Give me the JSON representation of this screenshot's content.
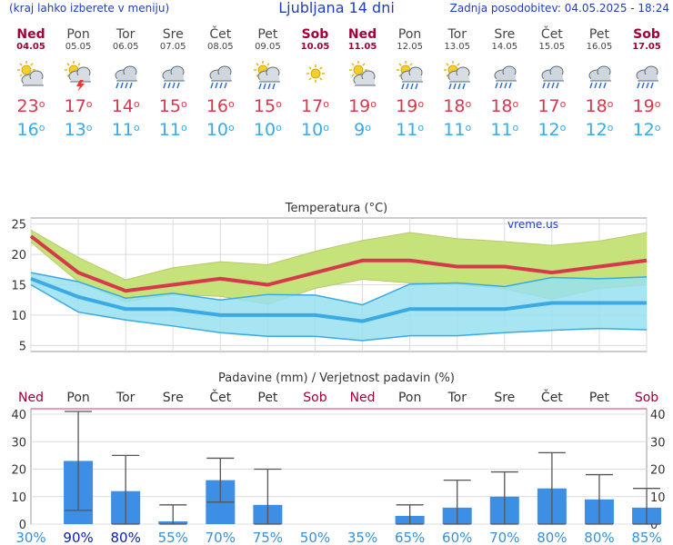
{
  "header": {
    "left_note": "(kraj lahko izberete v meniju)",
    "title": "Ljubljana 14 dni",
    "updated": "Zadnja posodobitev: 04.05.2025 - 18:24"
  },
  "colors": {
    "max_temp": "#d43a4c",
    "min_temp": "#3aa9e4",
    "weekend": "#a0003a",
    "weekday": "#444444",
    "bar": "#3d8fe6",
    "green_band": "#c6e27a",
    "blue_band": "#98e0f0"
  },
  "days": [
    {
      "name": "Ned",
      "date": "04.05",
      "weekend": true,
      "icon": "partly-cloudy-icon",
      "max": "23",
      "min": "16",
      "pct": "30%"
    },
    {
      "name": "Pon",
      "date": "05.05",
      "weekend": false,
      "icon": "sun-cloud-thunder-icon",
      "max": "17",
      "min": "13",
      "pct": "90%"
    },
    {
      "name": "Tor",
      "date": "06.05",
      "weekend": false,
      "icon": "cloud-rain-icon",
      "max": "14",
      "min": "11",
      "pct": "80%"
    },
    {
      "name": "Sre",
      "date": "07.05",
      "weekend": false,
      "icon": "cloud-rain-icon",
      "max": "15",
      "min": "11",
      "pct": "55%"
    },
    {
      "name": "Čet",
      "date": "08.05",
      "weekend": false,
      "icon": "cloud-rain-icon",
      "max": "16",
      "min": "10",
      "pct": "70%"
    },
    {
      "name": "Pet",
      "date": "09.05",
      "weekend": false,
      "icon": "sun-cloud-rain-icon",
      "max": "15",
      "min": "10",
      "pct": "75%"
    },
    {
      "name": "Sob",
      "date": "10.05",
      "weekend": true,
      "icon": "sun-icon",
      "max": "17",
      "min": "10",
      "pct": "50%"
    },
    {
      "name": "Ned",
      "date": "11.05",
      "weekend": true,
      "icon": "partly-cloudy-icon",
      "max": "19",
      "min": "9",
      "pct": "35%"
    },
    {
      "name": "Pon",
      "date": "12.05",
      "weekend": false,
      "icon": "sun-cloud-rain-icon",
      "max": "19",
      "min": "11",
      "pct": "65%"
    },
    {
      "name": "Tor",
      "date": "13.05",
      "weekend": false,
      "icon": "sun-cloud-rain-icon",
      "max": "18",
      "min": "11",
      "pct": "60%"
    },
    {
      "name": "Sre",
      "date": "14.05",
      "weekend": false,
      "icon": "cloud-rain-icon",
      "max": "18",
      "min": "11",
      "pct": "70%"
    },
    {
      "name": "Čet",
      "date": "15.05",
      "weekend": false,
      "icon": "cloud-rain-icon",
      "max": "17",
      "min": "12",
      "pct": "80%"
    },
    {
      "name": "Pet",
      "date": "16.05",
      "weekend": false,
      "icon": "cloud-rain-icon",
      "max": "18",
      "min": "12",
      "pct": "80%"
    },
    {
      "name": "Sob",
      "date": "17.05",
      "weekend": true,
      "icon": "cloud-rain-icon",
      "max": "19",
      "min": "12",
      "pct": "85%"
    }
  ],
  "chart_data": [
    {
      "type": "line",
      "title": "Temperatura (°C)",
      "watermark": "vreme.us",
      "ylim": [
        4,
        26
      ],
      "yticks": [
        5,
        10,
        15,
        20,
        25
      ],
      "grid": true,
      "series": [
        {
          "name": "max",
          "values": [
            23,
            17,
            14,
            15,
            16,
            15,
            17,
            19,
            19,
            18,
            18,
            17,
            18,
            19
          ]
        },
        {
          "name": "min",
          "values": [
            16,
            13,
            11,
            11,
            10,
            10,
            10,
            9,
            11,
            11,
            11,
            12,
            12,
            12
          ]
        },
        {
          "name": "max_upper",
          "values": [
            24,
            19.5,
            15.8,
            17.8,
            18.8,
            18.3,
            20.5,
            22.3,
            23.6,
            22.6,
            22.1,
            21.5,
            22.2,
            23.6
          ]
        },
        {
          "name": "max_lower",
          "values": [
            22,
            15.5,
            12.2,
            13.4,
            13.1,
            11.8,
            14.4,
            15.9,
            15.3,
            15.1,
            14.3,
            12.6,
            14.4,
            15.0
          ]
        },
        {
          "name": "min_upper",
          "values": [
            17,
            15.5,
            12.8,
            13.6,
            12.5,
            13.4,
            13.3,
            11.7,
            15.1,
            15.3,
            14.7,
            16.2,
            16.0,
            16.3
          ]
        },
        {
          "name": "min_lower",
          "values": [
            15,
            10.5,
            9.2,
            8.2,
            7.1,
            6.5,
            6.5,
            5.8,
            6.6,
            6.6,
            7.1,
            7.5,
            7.8,
            7.6
          ]
        }
      ]
    },
    {
      "type": "bar",
      "title": "Padavine (mm) / Verjetnost padavin (%)",
      "ylim": [
        0,
        42
      ],
      "yticks": [
        0,
        10,
        20,
        30,
        40
      ],
      "grid": true,
      "categories": [
        "Ned",
        "Pon",
        "Tor",
        "Sre",
        "Čet",
        "Pet",
        "Sob",
        "Ned",
        "Pon",
        "Tor",
        "Sre",
        "Čet",
        "Pet",
        "Sob"
      ],
      "values": [
        0,
        23,
        12,
        1,
        16,
        7,
        0,
        0,
        3,
        6,
        10,
        13,
        9,
        6
      ],
      "err_low": [
        0,
        5,
        0,
        0,
        8,
        0,
        0,
        0,
        0,
        0,
        0,
        0,
        0,
        0
      ],
      "err_high": [
        0,
        41,
        25,
        7,
        24,
        20,
        0,
        0,
        7,
        16,
        19,
        26,
        18,
        13
      ],
      "probability": [
        "30%",
        "90%",
        "80%",
        "55%",
        "70%",
        "75%",
        "50%",
        "35%",
        "65%",
        "60%",
        "70%",
        "80%",
        "80%",
        "85%"
      ],
      "probability_highlight": [
        false,
        true,
        true,
        false,
        false,
        false,
        false,
        false,
        false,
        false,
        false,
        false,
        false,
        false
      ]
    }
  ]
}
